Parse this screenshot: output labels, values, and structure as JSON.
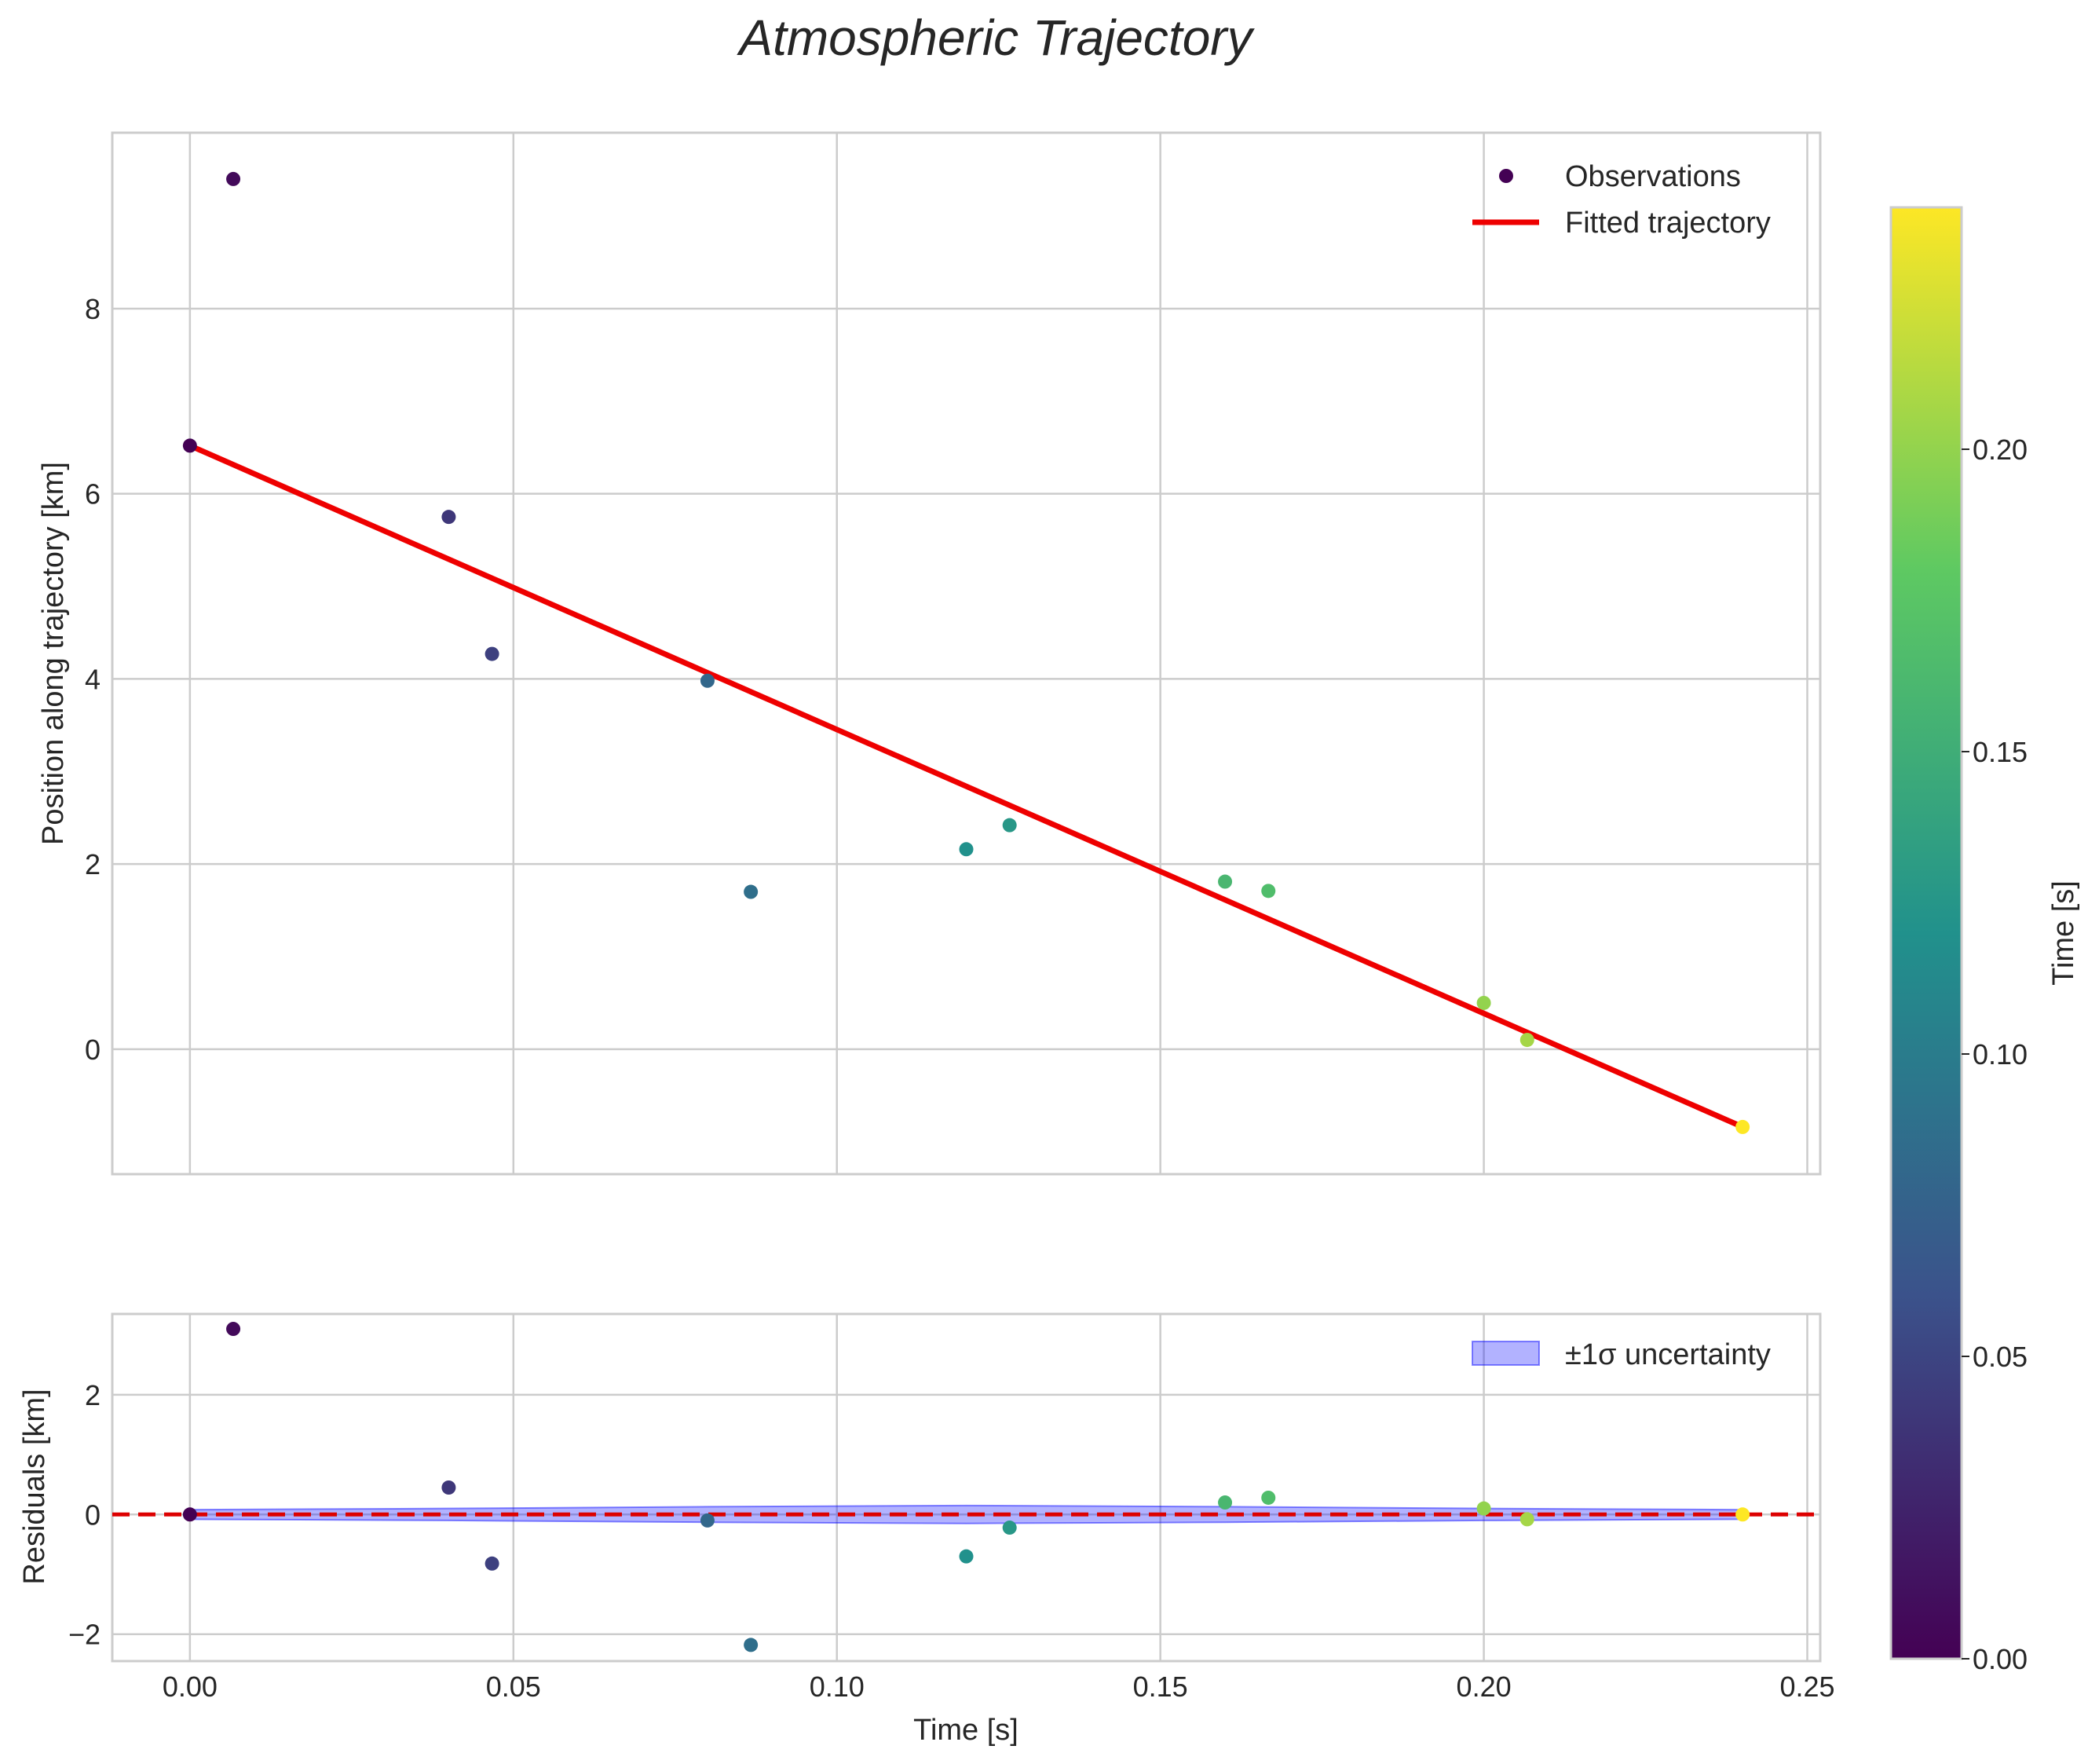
{
  "chart_data": [
    {
      "type": "scatter",
      "title": "Atmospheric Trajectory",
      "xlabel": "",
      "ylabel": "Position along trajectory [km]",
      "xlim": [
        -0.012,
        0.252
      ],
      "ylim": [
        -1.35,
        9.9
      ],
      "xticks": [
        0.0,
        0.05,
        0.1,
        0.15,
        0.2,
        0.25
      ],
      "yticks": [
        0,
        2,
        4,
        6,
        8
      ],
      "ytick_labels": [
        "0",
        "2",
        "4",
        "6",
        "8"
      ],
      "grid": true,
      "legend": {
        "position": "top-right",
        "entries": [
          "Observations",
          "Fitted trajectory"
        ]
      },
      "series": [
        {
          "name": "Observations",
          "kind": "scatter",
          "colormap": "viridis",
          "x": [
            0.0,
            0.0067,
            0.04,
            0.0467,
            0.08,
            0.0867,
            0.12,
            0.1267,
            0.16,
            0.1667,
            0.2,
            0.2067,
            0.24
          ],
          "y": [
            6.52,
            9.4,
            5.75,
            4.27,
            3.98,
            1.7,
            2.16,
            2.42,
            1.81,
            1.71,
            0.5,
            0.1,
            -0.84
          ]
        },
        {
          "name": "Fitted trajectory",
          "kind": "line",
          "color": "#ee0000",
          "x": [
            0.0,
            0.24
          ],
          "y": [
            6.52,
            -0.84
          ]
        }
      ]
    },
    {
      "type": "scatter",
      "xlabel": "Time [s]",
      "ylabel": "Residuals [km]",
      "xlim": [
        -0.012,
        0.252
      ],
      "ylim": [
        -2.45,
        3.35
      ],
      "xticks": [
        0.0,
        0.05,
        0.1,
        0.15,
        0.2,
        0.25
      ],
      "xtick_labels": [
        "0.00",
        "0.05",
        "0.10",
        "0.15",
        "0.20",
        "0.25"
      ],
      "yticks": [
        -2,
        0,
        2
      ],
      "ytick_labels": [
        "−2",
        "0",
        "2"
      ],
      "grid": true,
      "legend": {
        "position": "top-right",
        "entries": [
          "±1σ uncertainty"
        ]
      },
      "series": [
        {
          "name": "Residuals",
          "kind": "scatter",
          "colormap": "viridis",
          "x": [
            0.0,
            0.0067,
            0.04,
            0.0467,
            0.08,
            0.0867,
            0.12,
            0.1267,
            0.16,
            0.1667,
            0.2,
            0.2067,
            0.24
          ],
          "y": [
            0.0,
            3.1,
            0.45,
            -0.82,
            -0.1,
            -2.18,
            -0.7,
            -0.22,
            0.2,
            0.28,
            0.1,
            -0.08,
            0.0
          ]
        },
        {
          "name": "±1σ uncertainty",
          "kind": "band",
          "color": "#0000ff",
          "x": [
            0.0,
            0.04,
            0.08,
            0.12,
            0.16,
            0.2,
            0.24
          ],
          "lower": [
            -0.08,
            -0.1,
            -0.13,
            -0.15,
            -0.13,
            -0.1,
            -0.08
          ],
          "upper": [
            0.08,
            0.1,
            0.13,
            0.15,
            0.13,
            0.1,
            0.08
          ]
        },
        {
          "name": "Zero line",
          "kind": "hline",
          "color": "#dd0000",
          "y": 0
        }
      ]
    }
  ],
  "colorbar": {
    "label": "Time [s]",
    "range": [
      0.0,
      0.24
    ],
    "ticks": [
      0.0,
      0.05,
      0.1,
      0.15,
      0.2
    ],
    "tick_labels": [
      "0.00",
      "0.05",
      "0.10",
      "0.15",
      "0.20"
    ]
  }
}
